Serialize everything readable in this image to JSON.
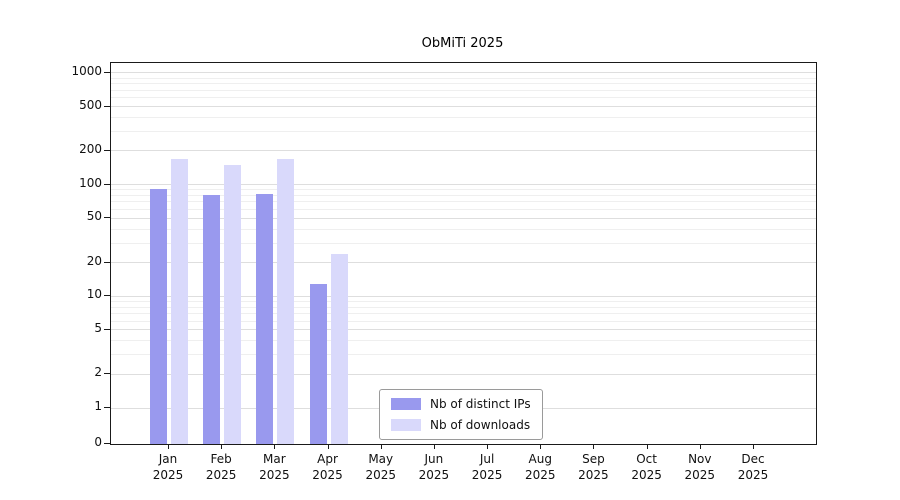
{
  "title": "ObMiTi 2025",
  "chart_data": {
    "type": "bar",
    "title": "ObMiTi 2025",
    "categories": [
      "Jan",
      "Feb",
      "Mar",
      "Apr",
      "May",
      "Jun",
      "Jul",
      "Aug",
      "Sep",
      "Oct",
      "Nov",
      "Dec"
    ],
    "year": "2025",
    "series": [
      {
        "name": "Nb of distinct IPs",
        "color": "#9999ee",
        "values": [
          92,
          80,
          82,
          13,
          0,
          0,
          0,
          0,
          0,
          0,
          0,
          0
        ]
      },
      {
        "name": "Nb of downloads",
        "color": "#d9d9fb",
        "values": [
          170,
          150,
          170,
          24,
          0,
          0,
          0,
          0,
          0,
          0,
          0,
          0
        ]
      }
    ],
    "yticks": [
      0,
      1,
      2,
      5,
      10,
      20,
      50,
      100,
      200,
      500,
      1000
    ],
    "yscale": "symlog",
    "ylim": [
      0,
      1000
    ],
    "xlabel": "",
    "ylabel": "",
    "grid": "horizontal",
    "legend_position": "bottom-center-inside"
  }
}
